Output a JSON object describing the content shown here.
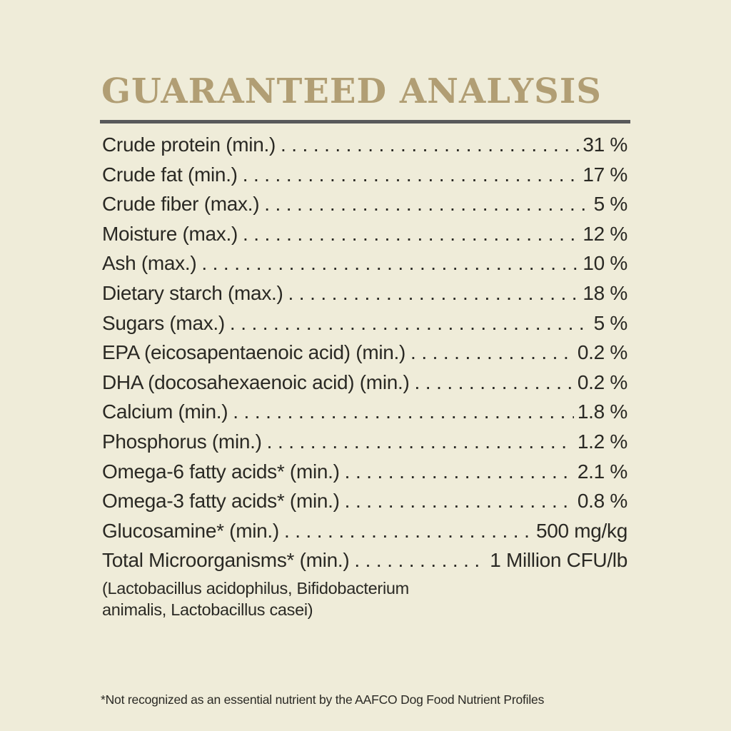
{
  "page": {
    "background_color": "#efecd9",
    "title_color": "#b19e74",
    "rule_color": "#58595b",
    "text_color": "#2a2924"
  },
  "header": {
    "title": "GUARANTEED ANALYSIS"
  },
  "table": {
    "rows": [
      {
        "label": "Crude protein (min.)",
        "value": "31 %"
      },
      {
        "label": "Crude fat (min.)",
        "value": "17 %"
      },
      {
        "label": "Crude fiber (max.)",
        "value": "5 %"
      },
      {
        "label": "Moisture (max.)",
        "value": "12 %"
      },
      {
        "label": "Ash (max.)",
        "value": "10 %"
      },
      {
        "label": "Dietary starch (max.)",
        "value": "18 %"
      },
      {
        "label": "Sugars (max.)",
        "value": "5 %"
      },
      {
        "label": "EPA (eicosapentaenoic acid) (min.)",
        "value": "0.2 %"
      },
      {
        "label": "DHA (docosahexaenoic acid) (min.)",
        "value": "0.2 %"
      },
      {
        "label": "Calcium (min.)",
        "value": "1.8 %"
      },
      {
        "label": "Phosphorus (min.)",
        "value": "1.2 %"
      },
      {
        "label": "Omega-6 fatty acids* (min.)",
        "value": "2.1 %"
      },
      {
        "label": "Omega-3 fatty acids* (min.)",
        "value": "0.8 %"
      },
      {
        "label": "Glucosamine* (min.)",
        "value": "500 mg/kg"
      },
      {
        "label": "Total Microorganisms* (min.)",
        "value": "1 Million CFU/lb"
      }
    ],
    "note_lines": [
      "(Lactobacillus acidophilus, Bifidobacterium",
      "animalis, Lactobacillus casei)"
    ]
  },
  "footnote": "*Not recognized as an essential nutrient by the AAFCO Dog Food Nutrient Profiles"
}
